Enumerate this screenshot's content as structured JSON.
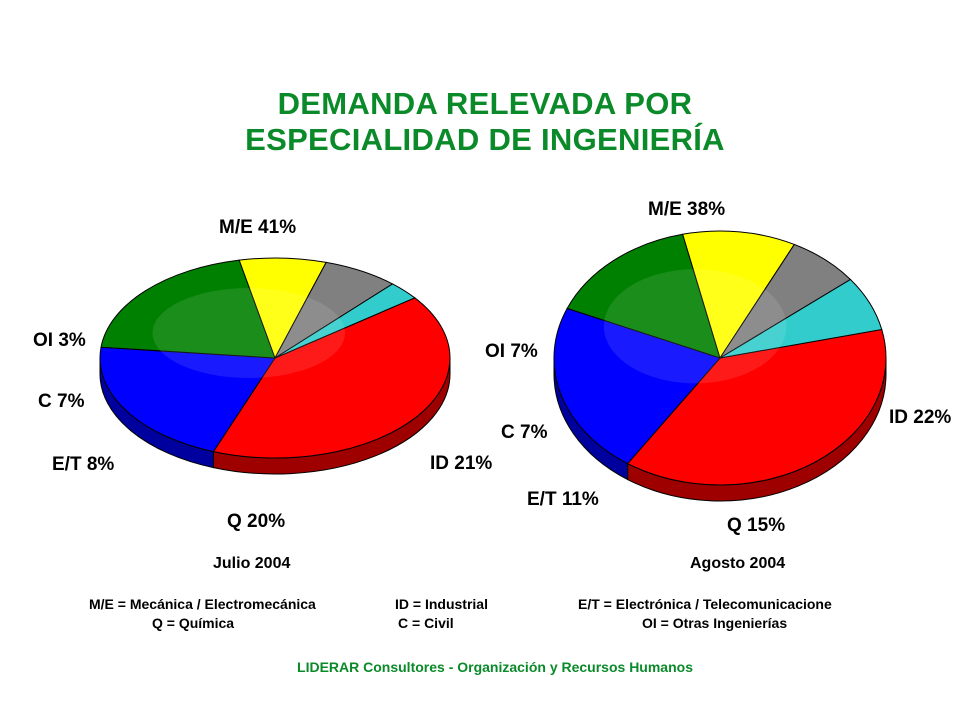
{
  "title": {
    "line1": "DEMANDA RELEVADA POR",
    "line2": "ESPECIALIDAD DE INGENIERÍA"
  },
  "colors": {
    "title": "#0b8a2a",
    "M/E": "#ff0000",
    "ID": "#0000ff",
    "Q": "#008000",
    "E/T": "#ffff00",
    "C": "#808080",
    "OI": "#33cccc"
  },
  "chart_data": [
    {
      "type": "pie",
      "caption": "Julio 2004",
      "categories": [
        "M/E",
        "ID",
        "Q",
        "E/T",
        "C",
        "OI"
      ],
      "values": [
        41,
        21,
        20,
        8,
        7,
        3
      ],
      "labels": [
        "M/E 41%",
        "ID 21%",
        "Q 20%",
        "E/T 8%",
        "C 7%",
        "OI 3%"
      ]
    },
    {
      "type": "pie",
      "caption": "Agosto 2004",
      "categories": [
        "M/E",
        "ID",
        "Q",
        "E/T",
        "C",
        "OI"
      ],
      "values": [
        38,
        22,
        15,
        11,
        7,
        7
      ],
      "labels": [
        "M/E 38%",
        "ID 22%",
        "Q 15%",
        "E/T 11%",
        "C 7%",
        "OI 7%"
      ]
    }
  ],
  "legend": {
    "me": "M/E = Mecánica / Electromecánica",
    "id": "ID = Industrial",
    "et": "E/T = Electrónica / Telecomunicacione",
    "q": "Q = Química",
    "c": "C = Civil",
    "oi": "OI = Otras Ingenierías"
  },
  "footer": "LIDERAR Consultores - Organización y Recursos Humanos"
}
